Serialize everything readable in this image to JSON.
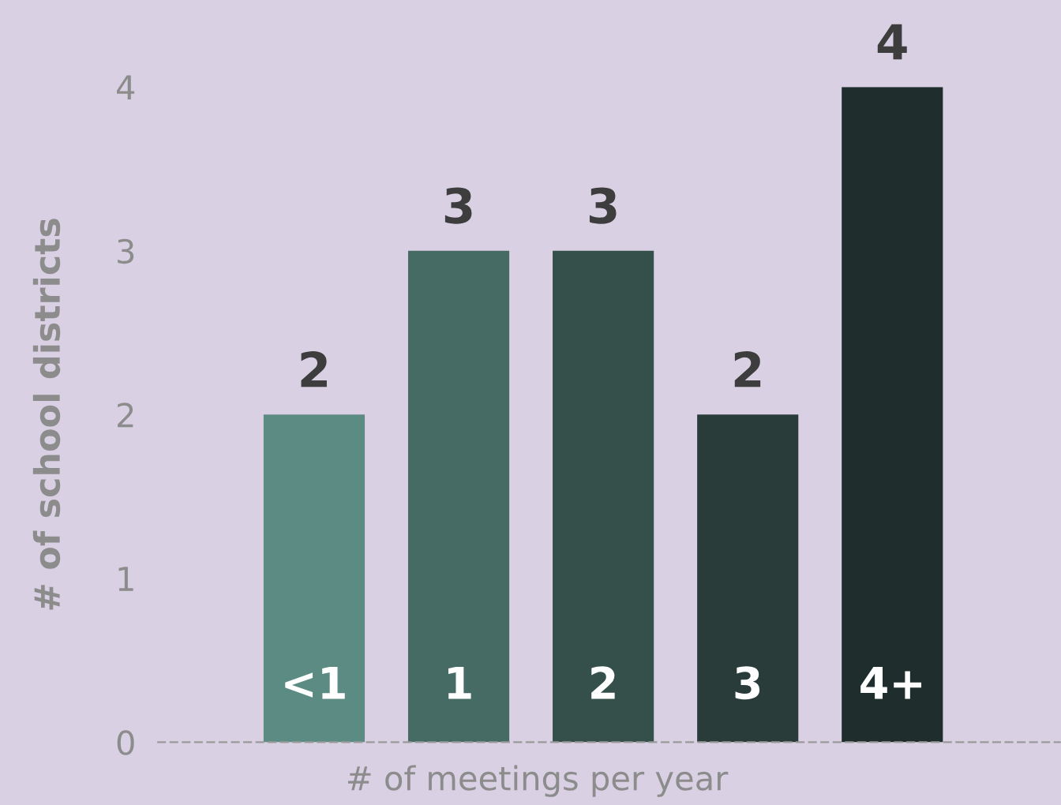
{
  "chart_data": {
    "type": "bar",
    "xlabel": "# of meetings per year",
    "ylabel": "# of school districts",
    "categories": [
      "<1",
      "1",
      "2",
      "3",
      "4+"
    ],
    "values": [
      2,
      3,
      3,
      2,
      4
    ],
    "colors": [
      "#5b8b83",
      "#466b65",
      "#354f4b",
      "#293c3a",
      "#1f2e2c"
    ],
    "ylim": [
      0,
      4
    ],
    "yticks": [
      0,
      1,
      2,
      3,
      4
    ],
    "data_labels": true,
    "grid": false,
    "legend": false
  }
}
